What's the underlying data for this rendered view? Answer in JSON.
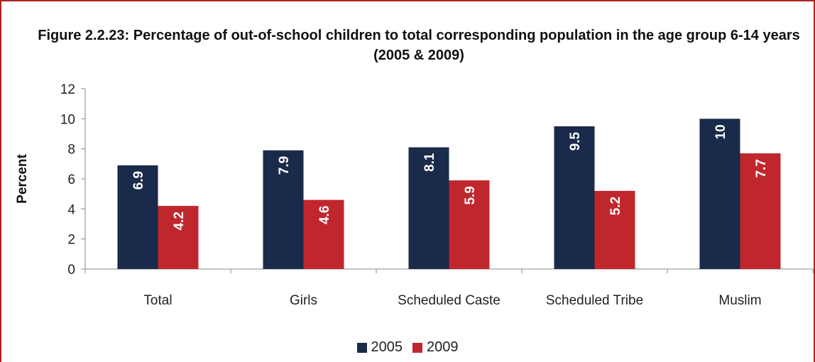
{
  "chart_data": {
    "type": "bar",
    "title": "Figure 2.2.23: Percentage of out-of-school children to total corresponding population in the age group 6-14 years (2005 & 2009)",
    "ylabel": "Percent",
    "xlabel": "",
    "categories": [
      "Total",
      "Girls",
      "Scheduled Caste",
      "Scheduled Tribe",
      "Muslim"
    ],
    "series": [
      {
        "name": "2005",
        "color": "#1a2a4a",
        "values": [
          6.9,
          7.9,
          8.1,
          9.5,
          10
        ],
        "labels": [
          "6.9",
          "7.9",
          "8.1",
          "9.5",
          "10"
        ]
      },
      {
        "name": "2009",
        "color": "#c0272d",
        "values": [
          4.2,
          4.6,
          5.9,
          5.2,
          7.7
        ],
        "labels": [
          "4.2",
          "4.6",
          "5.9",
          "5.2",
          "7.7"
        ]
      }
    ],
    "ylim": [
      0,
      12
    ],
    "yticks": [
      "0",
      "2",
      "4",
      "6",
      "8",
      "10",
      "12"
    ],
    "legend_position": "bottom",
    "grid": false
  }
}
